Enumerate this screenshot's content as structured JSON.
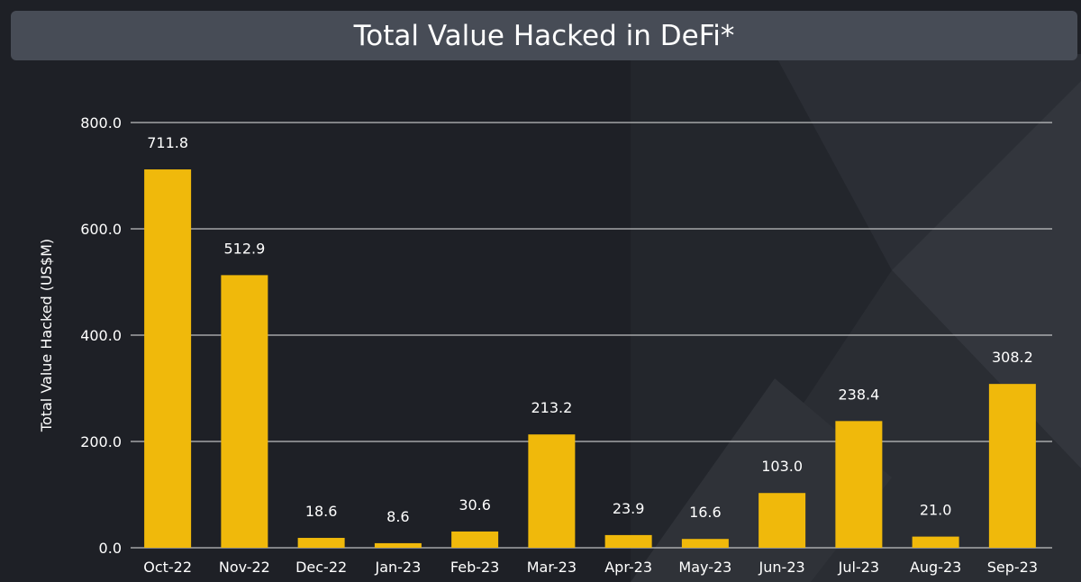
{
  "title": "Total Value Hacked in DeFi*",
  "chart_data": {
    "type": "bar",
    "title": "Total Value Hacked in DeFi*",
    "ylabel": "Total Value Hacked (US$M)",
    "xlabel": "",
    "ylim": [
      0,
      800
    ],
    "yticks": [
      "0.0",
      "200.0",
      "400.0",
      "600.0",
      "800.0"
    ],
    "grid": true,
    "categories": [
      "Oct-22",
      "Nov-22",
      "Dec-22",
      "Jan-23",
      "Feb-23",
      "Mar-23",
      "Apr-23",
      "May-23",
      "Jun-23",
      "Jul-23",
      "Aug-23",
      "Sep-23"
    ],
    "values": [
      711.8,
      512.9,
      18.6,
      8.6,
      30.6,
      213.2,
      23.9,
      16.6,
      103.0,
      238.4,
      21.0,
      308.2
    ],
    "value_labels": [
      "711.8",
      "512.9",
      "18.6",
      "8.6",
      "30.6",
      "213.2",
      "23.9",
      "16.6",
      "103.0",
      "238.4",
      "21.0",
      "308.2"
    ],
    "bar_color": "#f0b90b"
  },
  "colors": {
    "background": "#1e2026",
    "title_bar": "#474c56",
    "text": "#ffffff",
    "grid": "#e6e6e6"
  }
}
